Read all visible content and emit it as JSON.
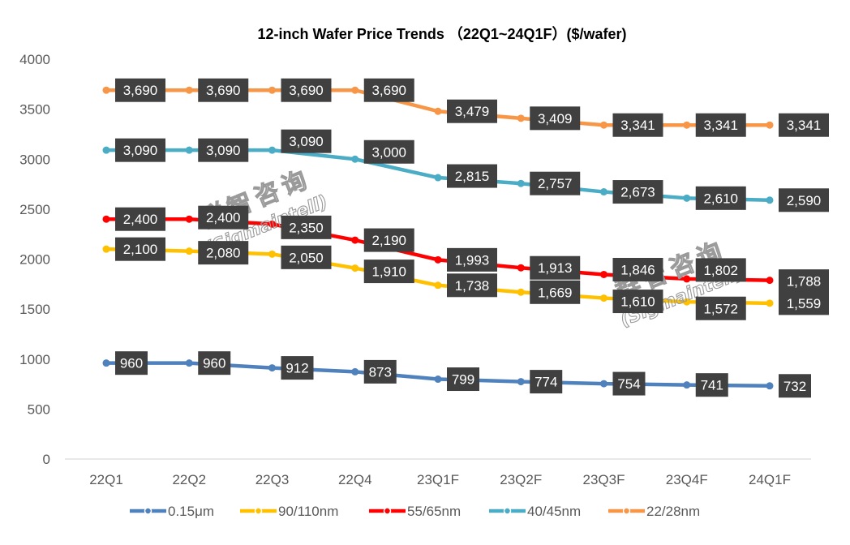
{
  "chart_data": {
    "type": "line",
    "title": "12-inch Wafer Price Trends  （22Q1~24Q1F）($/wafer)",
    "xlabel": "",
    "ylabel": "",
    "ylim": [
      0,
      4000
    ],
    "yticks": [
      0,
      500,
      1000,
      1500,
      2000,
      2500,
      3000,
      3500,
      4000
    ],
    "grid": false,
    "legend_position": "bottom",
    "categories": [
      "22Q1",
      "22Q2",
      "22Q3",
      "22Q4",
      "23Q1F",
      "23Q2F",
      "23Q3F",
      "23Q4F",
      "24Q1F"
    ],
    "series": [
      {
        "name": "0.15μm",
        "color": "#4F81BD",
        "values": [
          960,
          960,
          912,
          873,
          799,
          774,
          754,
          741,
          732
        ],
        "labels": [
          "960",
          "960",
          "912",
          "873",
          "799",
          "774",
          "754",
          "741",
          "732"
        ]
      },
      {
        "name": "90/110nm",
        "color": "#FFC000",
        "values": [
          2100,
          2080,
          2050,
          1910,
          1738,
          1669,
          1610,
          1572,
          1559
        ],
        "labels": [
          "2,100",
          "2,080",
          "2,050",
          "1,910",
          "1,738",
          "1,669",
          "1,610",
          "1,572",
          "1,559"
        ]
      },
      {
        "name": "55/65nm",
        "color": "#FF0000",
        "values": [
          2400,
          2400,
          2350,
          2190,
          1993,
          1913,
          1846,
          1802,
          1788
        ],
        "labels": [
          "2,400",
          "2,400",
          "2,350",
          "2,190",
          "1,993",
          "1,913",
          "1,846",
          "1,802",
          "1,788"
        ]
      },
      {
        "name": "40/45nm",
        "color": "#4BACC6",
        "values": [
          3090,
          3090,
          3090,
          3000,
          2815,
          2757,
          2673,
          2610,
          2590
        ],
        "labels": [
          "3,090",
          "3,090",
          "3,090",
          "3,000",
          "2,815",
          "2,757",
          "2,673",
          "2,610",
          "2,590"
        ]
      },
      {
        "name": "22/28nm",
        "color": "#F79646",
        "values": [
          3690,
          3690,
          3690,
          3690,
          3479,
          3409,
          3341,
          3341,
          3341
        ],
        "labels": [
          "3,690",
          "3,690",
          "3,690",
          "3,690",
          "3,479",
          "3,409",
          "3,341",
          "3,341",
          "3,341"
        ]
      }
    ],
    "label_box_color": "#404040",
    "watermark": {
      "line1": "群智咨询",
      "line2": "(Sigmaintell)"
    }
  }
}
